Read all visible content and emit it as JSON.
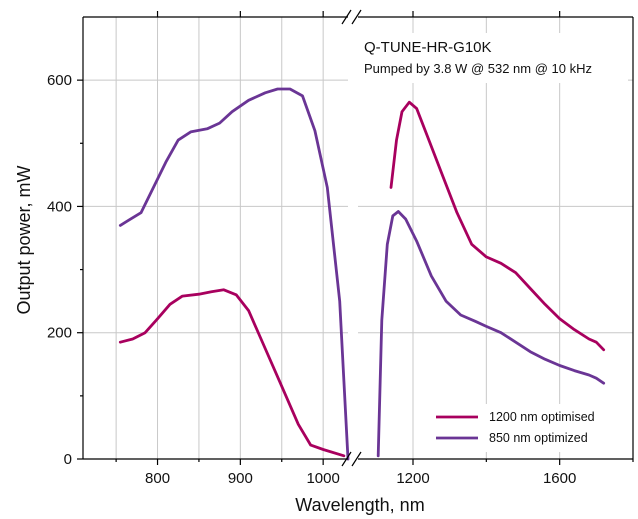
{
  "chart_data": {
    "type": "line",
    "title": "Q-TUNE-HR-G10K",
    "subtitle": "Pumped by 3.8 W  @ 532 nm @ 10 kHz",
    "xlabel": "Wavelength, nm",
    "ylabel": "Output power, mW",
    "ylim": [
      0,
      700
    ],
    "y_ticks": [
      0,
      200,
      400,
      600
    ],
    "x_axis_broken": true,
    "x_segments": [
      {
        "xlim": [
          710,
          1030
        ],
        "ticks": [
          800,
          900,
          1000
        ]
      },
      {
        "xlim": [
          1050,
          1800
        ],
        "ticks": [
          1200,
          1600
        ]
      }
    ],
    "grid": true,
    "legend_position": "bottom-right",
    "series": [
      {
        "name": "1200 nm optimised",
        "color": "#a8005e",
        "segments": [
          [
            [
              755,
              185
            ],
            [
              770,
              190
            ],
            [
              785,
              200
            ],
            [
              800,
              222
            ],
            [
              815,
              245
            ],
            [
              830,
              258
            ],
            [
              850,
              261
            ],
            [
              865,
              265
            ],
            [
              880,
              268
            ],
            [
              895,
              260
            ],
            [
              910,
              235
            ],
            [
              930,
              175
            ],
            [
              950,
              115
            ],
            [
              970,
              55
            ],
            [
              985,
              22
            ],
            [
              1000,
              15
            ],
            [
              1025,
              5
            ]
          ],
          [
            [
              1140,
              430
            ],
            [
              1155,
              505
            ],
            [
              1170,
              550
            ],
            [
              1190,
              565
            ],
            [
              1210,
              555
            ],
            [
              1240,
              510
            ],
            [
              1280,
              450
            ],
            [
              1320,
              390
            ],
            [
              1360,
              340
            ],
            [
              1400,
              320
            ],
            [
              1440,
              310
            ],
            [
              1480,
              295
            ],
            [
              1520,
              270
            ],
            [
              1560,
              245
            ],
            [
              1600,
              222
            ],
            [
              1640,
              205
            ],
            [
              1680,
              190
            ],
            [
              1700,
              185
            ],
            [
              1720,
              173
            ]
          ]
        ]
      },
      {
        "name": "850 nm optimized",
        "color": "#6a3595",
        "segments": [
          [
            [
              755,
              370
            ],
            [
              765,
              378
            ],
            [
              780,
              390
            ],
            [
              795,
              430
            ],
            [
              810,
              470
            ],
            [
              825,
              505
            ],
            [
              840,
              518
            ],
            [
              860,
              523
            ],
            [
              875,
              532
            ],
            [
              890,
              550
            ],
            [
              910,
              568
            ],
            [
              930,
              580
            ],
            [
              945,
              586
            ],
            [
              960,
              586
            ],
            [
              975,
              575
            ],
            [
              990,
              520
            ],
            [
              1005,
              430
            ],
            [
              1020,
              250
            ],
            [
              1030,
              0
            ]
          ],
          [
            [
              1105,
              5
            ],
            [
              1115,
              220
            ],
            [
              1130,
              340
            ],
            [
              1145,
              385
            ],
            [
              1160,
              392
            ],
            [
              1180,
              380
            ],
            [
              1210,
              345
            ],
            [
              1250,
              290
            ],
            [
              1290,
              250
            ],
            [
              1330,
              228
            ],
            [
              1370,
              218
            ],
            [
              1400,
              210
            ],
            [
              1440,
              200
            ],
            [
              1480,
              185
            ],
            [
              1520,
              170
            ],
            [
              1560,
              158
            ],
            [
              1600,
              148
            ],
            [
              1640,
              140
            ],
            [
              1680,
              133
            ],
            [
              1700,
              128
            ],
            [
              1720,
              120
            ]
          ]
        ]
      }
    ]
  }
}
